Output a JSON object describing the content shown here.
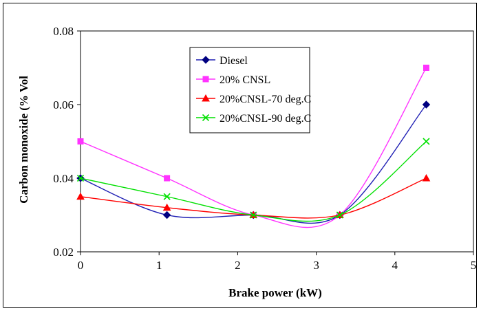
{
  "chart_data": {
    "type": "line",
    "xlabel": "Brake power (kW)",
    "ylabel": "Carbon monoxide (% Vol",
    "xlim": [
      0,
      5
    ],
    "ylim": [
      0.02,
      0.08
    ],
    "xticks": [
      0,
      1,
      2,
      3,
      4,
      5
    ],
    "yticks": [
      0.02,
      0.04,
      0.06,
      0.08
    ],
    "ytick_labels": [
      "0.02",
      "0.04",
      "0.06",
      "0.08"
    ],
    "grid": false,
    "legend_position": "top-center",
    "series": [
      {
        "name": "Diesel",
        "color": "#1f1fb4",
        "marker": "diamond",
        "x": [
          0,
          1.1,
          2.2,
          3.3,
          4.4
        ],
        "y": [
          0.04,
          0.03,
          0.03,
          0.03,
          0.06
        ]
      },
      {
        "name": "20% CNSL",
        "color": "#ff33ff",
        "marker": "square",
        "x": [
          0,
          1.1,
          2.2,
          3.3,
          4.4
        ],
        "y": [
          0.05,
          0.04,
          0.03,
          0.03,
          0.07
        ]
      },
      {
        "name": "20%CNSL-70 deg.C",
        "color": "#ff0000",
        "marker": "triangle",
        "x": [
          0,
          1.1,
          2.2,
          3.3,
          4.4
        ],
        "y": [
          0.035,
          0.032,
          0.03,
          0.03,
          0.04
        ]
      },
      {
        "name": "20%CNSL-90 deg.C",
        "color": "#00e000",
        "marker": "x",
        "x": [
          0,
          1.1,
          2.2,
          3.3,
          4.4
        ],
        "y": [
          0.04,
          0.035,
          0.03,
          0.03,
          0.05
        ]
      }
    ]
  }
}
